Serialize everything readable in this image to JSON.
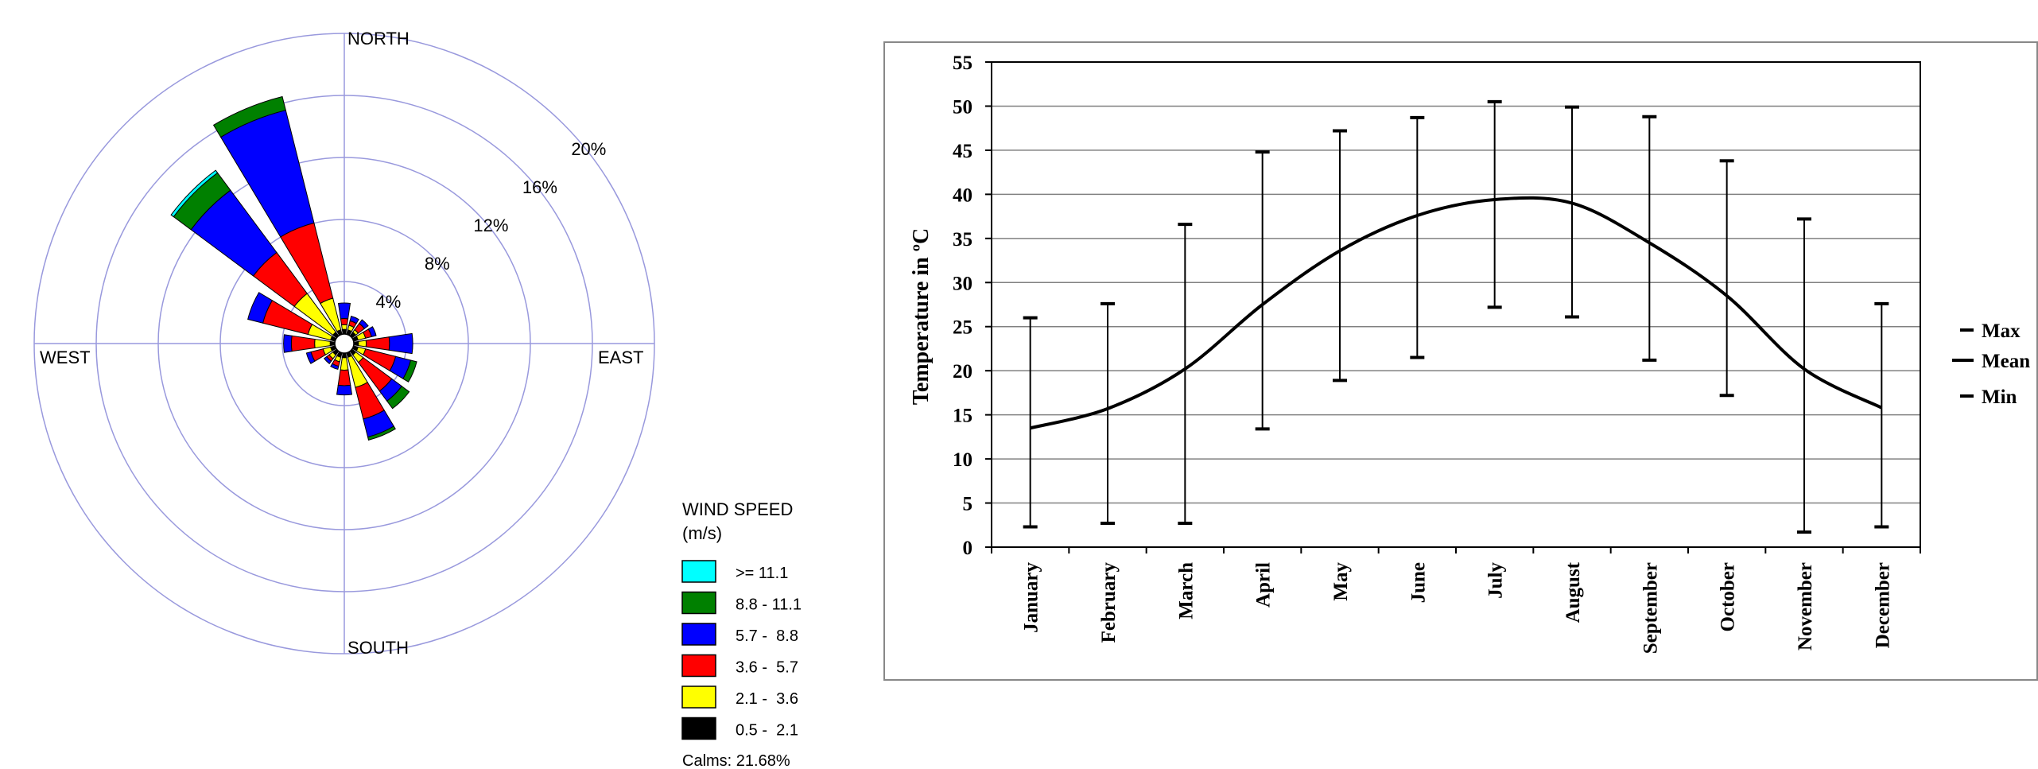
{
  "chart_data": [
    {
      "type": "wind-rose",
      "directions": [
        "NORTH",
        "EAST",
        "SOUTH",
        "WEST"
      ],
      "radial_labels": [
        "4%",
        "8%",
        "12%",
        "16%",
        "20%"
      ],
      "radial_ticks": [
        4,
        8,
        12,
        16,
        20
      ],
      "radial_max": 20,
      "grid": true,
      "legend": {
        "title_line1": "WIND SPEED",
        "title_line2": "(m/s)",
        "placement": "bottom-right",
        "items": [
          {
            "label": ">= 11.1",
            "color": "#00FFFF"
          },
          {
            "label": "8.8 - 11.1",
            "color": "#008000"
          },
          {
            "label": "5.7 -  8.8",
            "color": "#0000FF"
          },
          {
            "label": "3.6 -  5.7",
            "color": "#FF0000"
          },
          {
            "label": "2.1 -  3.6",
            "color": "#FFFF00"
          },
          {
            "label": "0.5 -  2.1",
            "color": "#000000"
          }
        ]
      },
      "calms_label": "Calms: 21.68%",
      "series_order": [
        "0.5 - 2.1",
        "2.1 - 3.6",
        "3.6 - 5.7",
        "5.7 - 8.8",
        "8.8 - 11.1",
        ">= 11.1"
      ],
      "sectors": [
        {
          "direction_deg": 0,
          "values": [
            0.3,
            0.3,
            0.4,
            1.0,
            0,
            0
          ]
        },
        {
          "direction_deg": 22.5,
          "values": [
            0.3,
            0.3,
            0.3,
            0.3,
            0,
            0
          ]
        },
        {
          "direction_deg": 45,
          "values": [
            0.3,
            0.2,
            0.5,
            0.3,
            0,
            0
          ]
        },
        {
          "direction_deg": 67.5,
          "values": [
            0.3,
            0.5,
            0.4,
            0.3,
            0,
            0
          ]
        },
        {
          "direction_deg": 90,
          "values": [
            0.3,
            0.5,
            1.5,
            1.5,
            0,
            0
          ]
        },
        {
          "direction_deg": 112.5,
          "values": [
            0.3,
            0.5,
            2.0,
            1.0,
            0.4,
            0
          ]
        },
        {
          "direction_deg": 135,
          "values": [
            0.3,
            0.6,
            2.3,
            0.8,
            0.6,
            0
          ]
        },
        {
          "direction_deg": 157.5,
          "values": [
            0.3,
            2.0,
            2.1,
            1.2,
            0.2,
            0
          ]
        },
        {
          "direction_deg": 180,
          "values": [
            0.3,
            0.8,
            1.0,
            0.6,
            0,
            0
          ]
        },
        {
          "direction_deg": 202.5,
          "values": [
            0.3,
            0.3,
            0.3,
            0.2,
            0,
            0
          ]
        },
        {
          "direction_deg": 225,
          "values": [
            0.3,
            0.3,
            0.2,
            0.2,
            0,
            0
          ]
        },
        {
          "direction_deg": 247.5,
          "values": [
            0.3,
            0.5,
            0.8,
            0.3,
            0,
            0
          ]
        },
        {
          "direction_deg": 270,
          "values": [
            0.3,
            1.0,
            1.5,
            0.5,
            0,
            0
          ]
        },
        {
          "direction_deg": 292.5,
          "values": [
            0.3,
            1.5,
            3.0,
            1.0,
            0,
            0
          ]
        },
        {
          "direction_deg": 315,
          "values": [
            0.3,
            3.1,
            3.3,
            5.0,
            1.4,
            0.2
          ]
        },
        {
          "direction_deg": 337.5,
          "values": [
            0.3,
            2.1,
            5.0,
            7.5,
            0.9,
            0
          ]
        }
      ]
    },
    {
      "type": "line",
      "ylabel": "Temperature in ºC",
      "ylim": [
        0,
        55
      ],
      "yticks": [
        "0",
        "5",
        "10",
        "15",
        "20",
        "25",
        "30",
        "35",
        "40",
        "45",
        "50",
        "55"
      ],
      "grid": true,
      "legend_placement": "right",
      "categories": [
        "January",
        "February",
        "March",
        "April",
        "May",
        "June",
        "July",
        "August",
        "September",
        "October",
        "November",
        "December"
      ],
      "series": [
        {
          "name": "Max",
          "values": [
            26,
            27.6,
            36.6,
            44.8,
            47.2,
            48.7,
            50.5,
            49.9,
            48.8,
            43.8,
            37.2,
            27.6
          ]
        },
        {
          "name": "Mean",
          "values": [
            13.5,
            15.7,
            20.2,
            27.5,
            33.6,
            37.6,
            39.4,
            39.0,
            34.5,
            28.5,
            20.2,
            15.8
          ]
        },
        {
          "name": "Min",
          "values": [
            2.3,
            2.7,
            2.7,
            13.4,
            18.9,
            21.5,
            27.2,
            26.1,
            21.2,
            17.2,
            1.7,
            2.3
          ]
        }
      ]
    }
  ]
}
